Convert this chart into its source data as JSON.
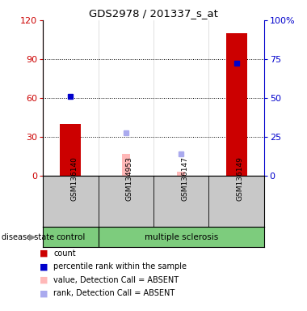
{
  "title": "GDS2978 / 201337_s_at",
  "samples": [
    "GSM136140",
    "GSM134953",
    "GSM136147",
    "GSM136149"
  ],
  "disease_state": [
    "control",
    "multiple sclerosis",
    "multiple sclerosis",
    "multiple sclerosis"
  ],
  "count_values": [
    40,
    0,
    0,
    110
  ],
  "count_absent": [
    false,
    false,
    false,
    false
  ],
  "percentile_values": [
    61,
    null,
    null,
    87
  ],
  "rank_absent_values": [
    null,
    33,
    17,
    null
  ],
  "value_absent_values": [
    null,
    17,
    3,
    null
  ],
  "ylim_left": [
    0,
    120
  ],
  "ylim_right": [
    0,
    100
  ],
  "yticks_left": [
    0,
    30,
    60,
    90,
    120
  ],
  "yticks_right": [
    0,
    25,
    50,
    75,
    100
  ],
  "ytick_labels_right": [
    "0",
    "25",
    "50",
    "75",
    "100%"
  ],
  "left_axis_color": "#cc0000",
  "right_axis_color": "#0000cc",
  "absent_rank_color": "#aaaaee",
  "absent_value_color": "#ffb8b8",
  "count_color": "#cc0000",
  "percentile_color": "#0000cc",
  "bg_sample_row": "#c8c8c8",
  "bg_green": "#7dcc7d",
  "legend_items": [
    {
      "label": "count",
      "color": "#cc0000"
    },
    {
      "label": "percentile rank within the sample",
      "color": "#0000cc"
    },
    {
      "label": "value, Detection Call = ABSENT",
      "color": "#ffb8b8"
    },
    {
      "label": "rank, Detection Call = ABSENT",
      "color": "#aaaaee"
    }
  ]
}
